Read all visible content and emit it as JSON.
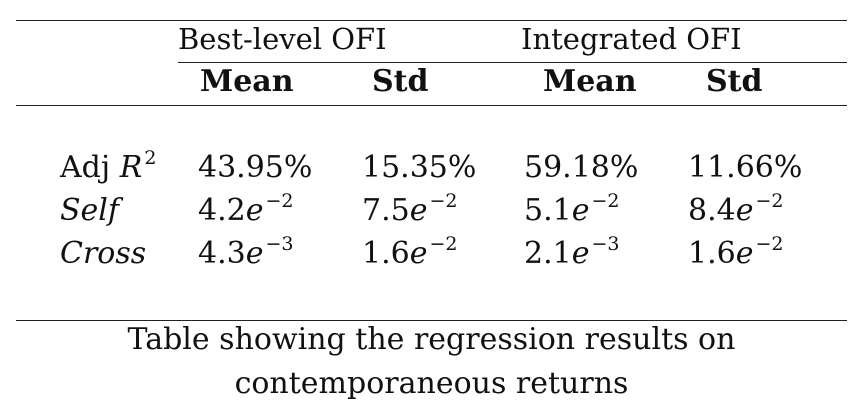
{
  "table": {
    "groups": [
      "Best-level OFI",
      "Integrated OFI"
    ],
    "columns": [
      "Mean",
      "Std",
      "Mean",
      "Std"
    ],
    "rows": [
      {
        "label": "Adj",
        "label_math": "R",
        "label_sup": "2",
        "cells": [
          {
            "base": "43.95%",
            "exp": ""
          },
          {
            "base": "15.35%",
            "exp": ""
          },
          {
            "base": "59.18%",
            "exp": ""
          },
          {
            "base": "11.66%",
            "exp": ""
          }
        ]
      },
      {
        "label": "Self",
        "label_math": "",
        "label_sup": "",
        "cells": [
          {
            "base": "4.2",
            "e": "e",
            "exp": "−2"
          },
          {
            "base": "7.5",
            "e": "e",
            "exp": "−2"
          },
          {
            "base": "5.1",
            "e": "e",
            "exp": "−2"
          },
          {
            "base": "8.4",
            "e": "e",
            "exp": "−2"
          }
        ]
      },
      {
        "label": "Cross",
        "label_math": "",
        "label_sup": "",
        "cells": [
          {
            "base": "4.3",
            "e": "e",
            "exp": "−3"
          },
          {
            "base": "1.6",
            "e": "e",
            "exp": "−2"
          },
          {
            "base": "2.1",
            "e": "e",
            "exp": "−3"
          },
          {
            "base": "1.6",
            "e": "e",
            "exp": "−2"
          }
        ]
      }
    ]
  },
  "caption": {
    "line1": "Table showing the regression results on",
    "line2": "contemporaneous returns"
  }
}
